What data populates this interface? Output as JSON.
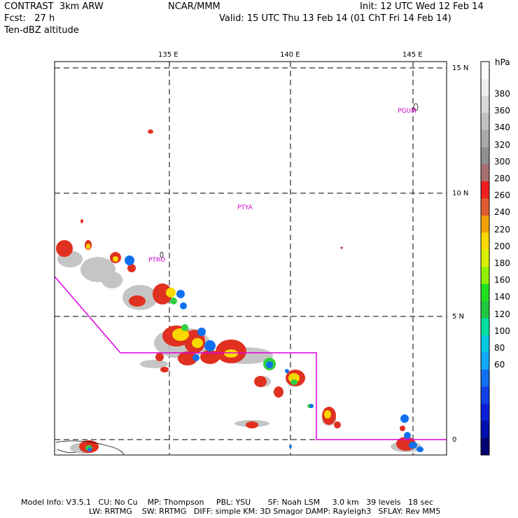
{
  "header": {
    "left1": "CONTRAST  3km ARW",
    "left2": "Fcst:   27 h",
    "left3": "Ten-dBZ altitude",
    "center": "NCAR/MMM",
    "right1": "Init: 12 UTC Wed 12 Feb 14",
    "right2": "Valid: 15 UTC Thu 13 Feb 14 (01 ChT Fri 14 Feb 14)"
  },
  "map": {
    "lon_labels": [
      "135 E",
      "140 E",
      "145 E"
    ],
    "lat_labels": [
      "15 N",
      "10 N",
      "5 N",
      "0"
    ],
    "stations": [
      "PGUM",
      "PTYA",
      "PTRO"
    ],
    "boundary_color": "#dd00dd"
  },
  "colorbar": {
    "unit": "hPa",
    "labels": [
      "380",
      "360",
      "340",
      "320",
      "300",
      "280",
      "260",
      "240",
      "220",
      "200",
      "180",
      "160",
      "140",
      "120",
      "100",
      "80",
      "60"
    ],
    "colors": [
      "#ffffff",
      "#eeeeee",
      "#d8d8d8",
      "#c0c0c0",
      "#a8a8a8",
      "#909090",
      "#a87070",
      "#f02020",
      "#e05a30",
      "#f0a000",
      "#f8d800",
      "#d8f000",
      "#90f000",
      "#20e020",
      "#20c840",
      "#00e0a0",
      "#00c8e0",
      "#10a8f8",
      "#1070f0",
      "#1040e8",
      "#0a20d8",
      "#0010b0",
      "#000070"
    ]
  },
  "footer": {
    "line1": "Model Info: V3.5.1   CU: No Cu    MP: Thompson     PBL: YSU       SF: Noah LSM     3.0 km   39 levels   18 sec",
    "line2": "LW: RRTMG    SW: RRTMG   DIFF: simple KM: 3D Smagor DAMP: Rayleigh3   SFLAY: Rev MM5"
  }
}
